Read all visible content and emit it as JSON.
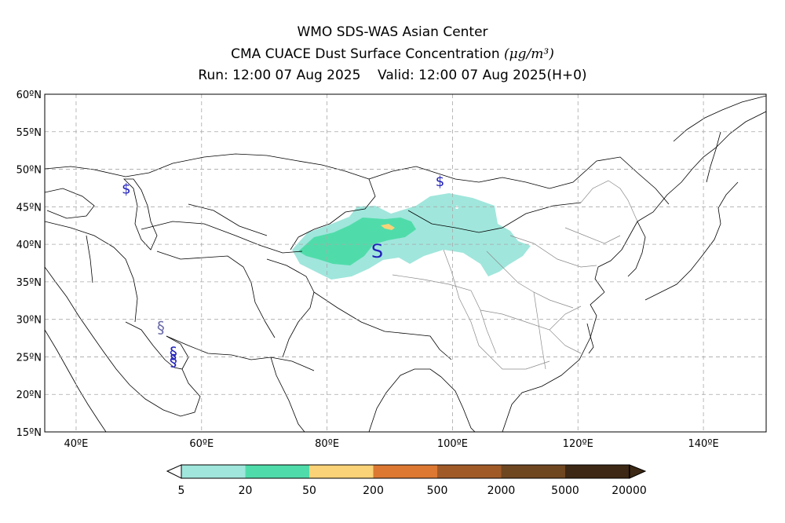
{
  "header": {
    "line1": "WMO SDS-WAS Asian Center",
    "line2_text": "CMA CUACE Dust Surface Concentration",
    "line2_unit": "(μg/m³)",
    "line3": "Run: 12:00 07 Aug 2025    Valid: 12:00 07 Aug 2025(H+0)"
  },
  "map": {
    "lon_range": [
      35,
      150
    ],
    "lat_range": [
      15,
      60
    ],
    "lat_ticks": [
      {
        "value": 60,
        "label": "60ºN"
      },
      {
        "value": 55,
        "label": "55ºN"
      },
      {
        "value": 50,
        "label": "50ºN"
      },
      {
        "value": 45,
        "label": "45ºN"
      },
      {
        "value": 40,
        "label": "40ºN"
      },
      {
        "value": 35,
        "label": "35ºN"
      },
      {
        "value": 30,
        "label": "30ºN"
      },
      {
        "value": 25,
        "label": "25ºN"
      },
      {
        "value": 20,
        "label": "20ºN"
      },
      {
        "value": 15,
        "label": "15ºN"
      }
    ],
    "lon_ticks": [
      {
        "value": 40,
        "label": "40ºE"
      },
      {
        "value": 60,
        "label": "60ºE"
      },
      {
        "value": 80,
        "label": "80ºE"
      },
      {
        "value": 100,
        "label": "100ºE"
      },
      {
        "value": 120,
        "label": "120ºE"
      },
      {
        "value": 140,
        "label": "140ºE"
      }
    ],
    "gridlines": true,
    "dust_symbols": [
      {
        "lon": 48,
        "lat": 47.5,
        "symbol": "$"
      },
      {
        "lon": 98,
        "lat": 48.5,
        "symbol": "$"
      },
      {
        "lon": 88,
        "lat": 39.2,
        "symbol": "S"
      },
      {
        "lon": 53.5,
        "lat": 28.9,
        "symbol": "§"
      },
      {
        "lon": 55.5,
        "lat": 25.5,
        "symbol": "§"
      },
      {
        "lon": 55.5,
        "lat": 24.5,
        "symbol": "§"
      }
    ]
  },
  "colorbar": {
    "colors": [
      "#a0e6dc",
      "#50dcaa",
      "#fad278",
      "#dc7832",
      "#a05a28",
      "#6e4620",
      "#3c2814"
    ],
    "labels": [
      "5",
      "20",
      "50",
      "200",
      "500",
      "2000",
      "5000",
      "20000"
    ]
  }
}
